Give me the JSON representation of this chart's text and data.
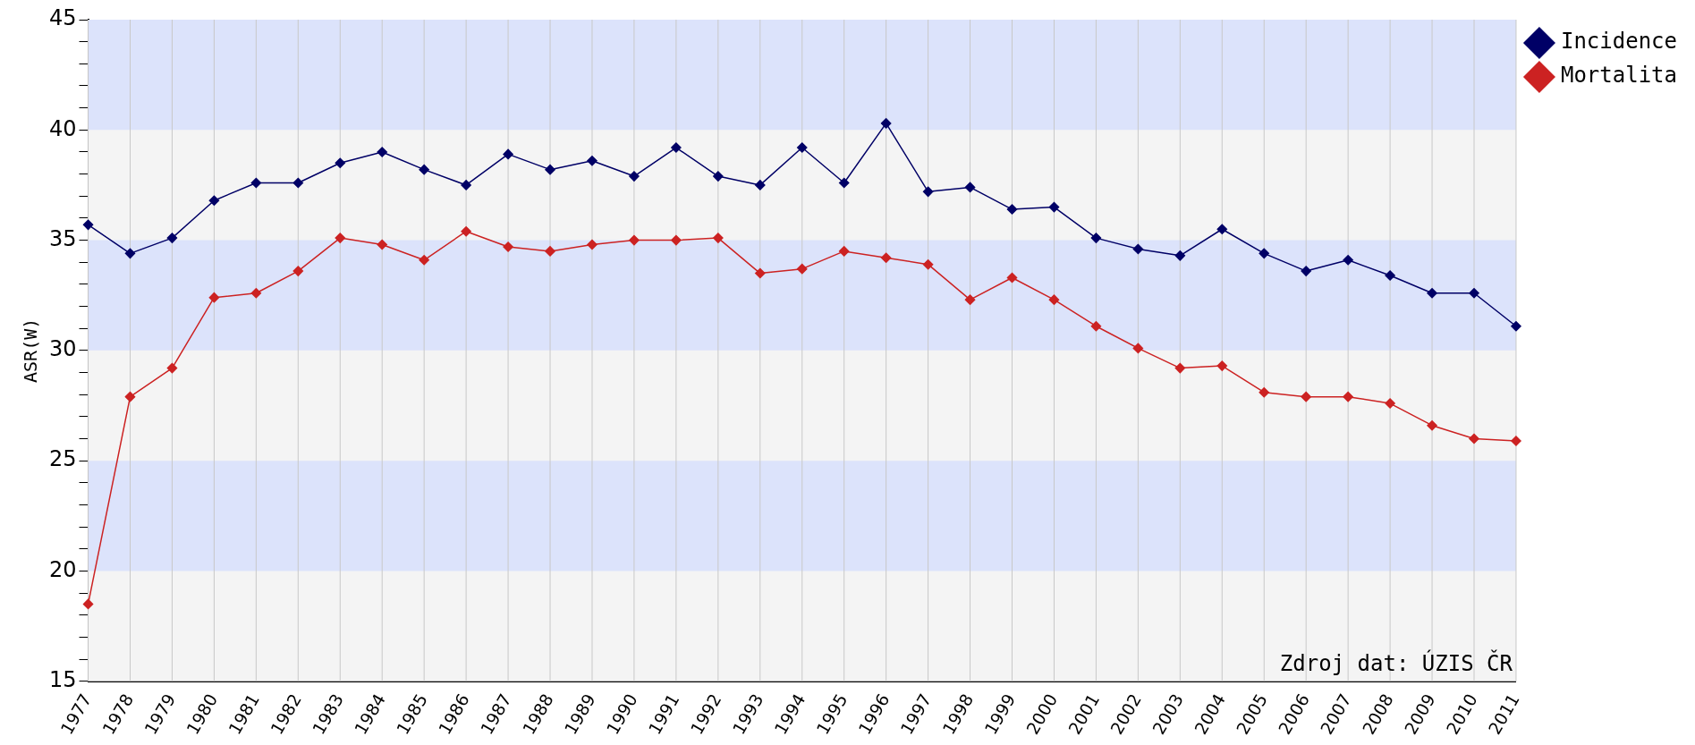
{
  "chart_data": {
    "type": "line",
    "ylabel": "ASR(W)",
    "categories": [
      "1977",
      "1978",
      "1979",
      "1980",
      "1981",
      "1982",
      "1983",
      "1984",
      "1985",
      "1986",
      "1987",
      "1988",
      "1989",
      "1990",
      "1991",
      "1992",
      "1993",
      "1994",
      "1995",
      "1996",
      "1997",
      "1998",
      "1999",
      "2000",
      "2001",
      "2002",
      "2003",
      "2004",
      "2005",
      "2006",
      "2007",
      "2008",
      "2009",
      "2010",
      "2011"
    ],
    "series": [
      {
        "name": "Incidence",
        "color": "#000066",
        "values": [
          35.7,
          34.4,
          35.1,
          36.8,
          37.6,
          37.6,
          38.5,
          39.0,
          38.2,
          37.5,
          38.9,
          38.2,
          38.6,
          37.9,
          39.2,
          37.9,
          37.5,
          39.2,
          37.6,
          40.3,
          37.2,
          37.4,
          36.4,
          36.5,
          35.1,
          34.6,
          34.3,
          35.5,
          34.4,
          33.6,
          34.1,
          33.4,
          32.6,
          32.6,
          31.1
        ]
      },
      {
        "name": "Mortalita",
        "color": "#cc2222",
        "values": [
          18.5,
          27.9,
          29.2,
          32.4,
          32.6,
          33.6,
          35.1,
          34.8,
          34.1,
          35.4,
          34.7,
          34.5,
          34.8,
          35.0,
          35.0,
          35.1,
          33.5,
          33.7,
          34.5,
          34.2,
          33.9,
          32.3,
          33.3,
          32.3,
          31.1,
          30.1,
          29.2,
          29.3,
          28.1,
          27.9,
          27.9,
          27.6,
          26.6,
          26.0,
          25.9
        ]
      }
    ],
    "ylim": [
      15,
      45
    ],
    "yticks": [
      15,
      {
        "value": 16,
        "label": null
      },
      {
        "value": 17,
        "label": null
      },
      {
        "value": 18,
        "label": null
      },
      {
        "value": 19,
        "label": null
      },
      20,
      {
        "value": 21,
        "label": null
      },
      {
        "value": 22,
        "label": null
      },
      {
        "value": 23,
        "label": null
      },
      {
        "value": 24,
        "label": null
      },
      25,
      {
        "value": 26,
        "label": null
      },
      {
        "value": 27,
        "label": null
      },
      {
        "value": 28,
        "label": null
      },
      {
        "value": 29,
        "label": null
      },
      30,
      {
        "value": 31,
        "label": null
      },
      {
        "value": 32,
        "label": null
      },
      {
        "value": 33,
        "label": null
      },
      {
        "value": 34,
        "label": null
      },
      35,
      {
        "value": 36,
        "label": null
      },
      {
        "value": 37,
        "label": null
      },
      {
        "value": 38,
        "label": null
      },
      {
        "value": 39,
        "label": null
      },
      40,
      {
        "value": 41,
        "label": null
      },
      {
        "value": 42,
        "label": null
      },
      {
        "value": 43,
        "label": null
      },
      {
        "value": 44,
        "label": null
      },
      45
    ],
    "bands": [
      {
        "axis": "y",
        "from": 20,
        "to": 25,
        "color": "#dce3fb"
      },
      {
        "axis": "y",
        "from": 30,
        "to": 35,
        "color": "#dce3fb"
      },
      {
        "axis": "y",
        "from": 40,
        "to": 45,
        "color": "#dce3fb"
      }
    ],
    "grid": "x",
    "legend": "top right",
    "marker": "diamond",
    "line_style": "solid",
    "annotations": [
      "Zdroj dat: ÚZIS ČR"
    ]
  }
}
